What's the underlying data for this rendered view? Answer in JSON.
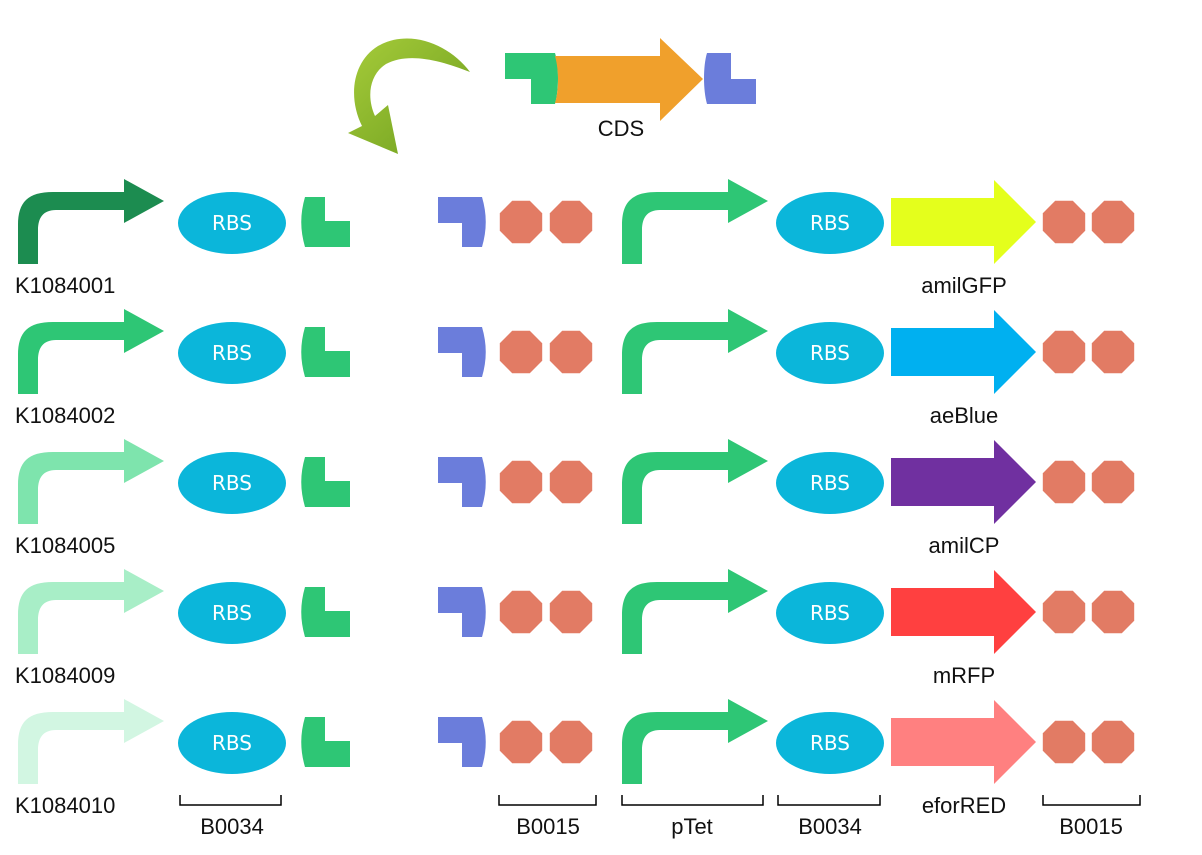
{
  "colors": {
    "promoter_shades": [
      "#1c8c50",
      "#2ec675",
      "#7ee4ad",
      "#a8eec7",
      "#d2f6e2"
    ],
    "ptet_promoter": "#2ec675",
    "rbs": "#0bb6da",
    "overhang_left": "#2ec675",
    "overhang_right": "#6b7ddb",
    "terminator": "#e27b64",
    "cds": "#f0a02c",
    "curved_arrow": "#8cb82e"
  },
  "cds_part": {
    "label": "CDS"
  },
  "rbs_label": "RBS",
  "rows": [
    {
      "id": "K1084001",
      "reporter": "amilGFP",
      "reporter_color": "#e4ff1c"
    },
    {
      "id": "K1084002",
      "reporter": "aeBlue",
      "reporter_color": "#00b0f0"
    },
    {
      "id": "K1084005",
      "reporter": "amilCP",
      "reporter_color": "#7030a0"
    },
    {
      "id": "K1084009",
      "reporter": "mRFP",
      "reporter_color": "#ff4040"
    },
    {
      "id": "K1084010",
      "reporter": "eforRED",
      "reporter_color": "#ff8080"
    }
  ],
  "bottom_labels": {
    "b0034_left": "B0034",
    "b0015_left": "B0015",
    "ptet": "pTet",
    "b0034_right": "B0034",
    "b0015_right": "B0015"
  }
}
